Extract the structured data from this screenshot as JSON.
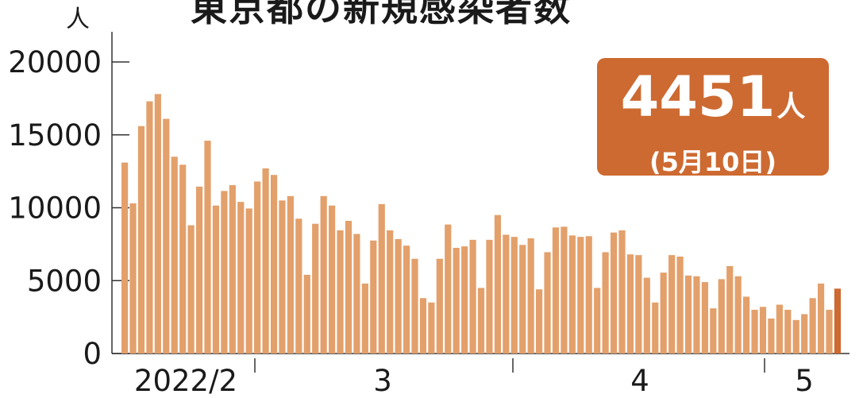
{
  "chart_data": {
    "type": "bar",
    "title": "東京都の新規感染者数",
    "ylabel": "人",
    "ylim": [
      0,
      21000
    ],
    "yticks": [
      0,
      5000,
      10000,
      15000,
      20000
    ],
    "x_tick_labels": [
      "2022/2",
      "3",
      "4",
      "5"
    ],
    "series": [
      {
        "values": [
          13100,
          10300,
          15600,
          17300,
          17800,
          16100,
          13500,
          12950,
          8800,
          11450,
          14600,
          10150,
          11150,
          11550,
          10400,
          9950,
          11800,
          12700,
          12250,
          10500,
          10800,
          9250,
          5400,
          8900,
          10800,
          10150,
          8450,
          9100,
          8200,
          4800,
          7750,
          10250,
          8450,
          7850,
          7400,
          6500,
          3800,
          3500,
          6500,
          8850,
          7250,
          7350,
          7800,
          4500,
          7800,
          9500,
          8150,
          8000,
          7450,
          7900,
          4400,
          6950,
          8650,
          8700,
          8100,
          8000,
          8050,
          4500,
          6950,
          8300,
          8450,
          6800,
          6750,
          5200,
          3500,
          5550,
          6750,
          6650,
          5350,
          5300,
          4900,
          3100,
          5100,
          6000,
          5300,
          3900,
          3000,
          3200,
          2400,
          3350,
          3000,
          2300,
          2700,
          3800,
          4800,
          3000,
          4451
        ],
        "color": "#e3a06b"
      }
    ],
    "highlight_color": "#cd6a31",
    "grid": false,
    "callout": {
      "value": "4451",
      "unit": "人",
      "date": "(5月10日)"
    }
  }
}
